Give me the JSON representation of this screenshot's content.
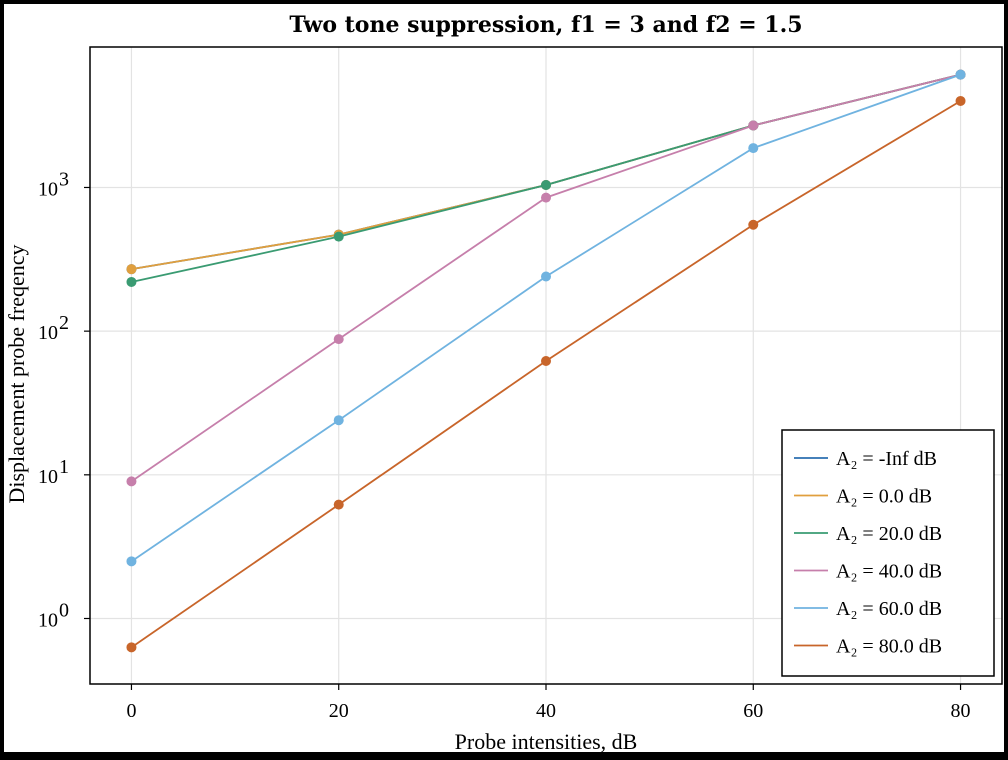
{
  "chart_data": {
    "type": "line",
    "title": "Two tone suppression, f1 = 3 and f2 = 1.5",
    "xlabel": "Probe intensities, dB",
    "ylabel": "Displacement probe freqency",
    "x": [
      0,
      20,
      40,
      60,
      80
    ],
    "xlim": [
      -4,
      84
    ],
    "xticks": [
      "0",
      "20",
      "40",
      "60",
      "80"
    ],
    "yscale": "log",
    "ylim": [
      0.35,
      9500
    ],
    "yticks": [
      {
        "value": 1,
        "base": "10",
        "exp": "0"
      },
      {
        "value": 10,
        "base": "10",
        "exp": "1"
      },
      {
        "value": 100,
        "base": "10",
        "exp": "2"
      },
      {
        "value": 1000,
        "base": "10",
        "exp": "3"
      }
    ],
    "grid": true,
    "legend_position": "bottom-right",
    "series": [
      {
        "name": "A₂ = -Inf dB",
        "color": "#2c6fb0",
        "values": [
          270,
          470,
          1040,
          2700,
          6100
        ]
      },
      {
        "name": "A₂ = 0.0 dB",
        "color": "#e09f3e",
        "values": [
          270,
          470,
          1040,
          2700,
          6100
        ]
      },
      {
        "name": "A₂ = 20.0 dB",
        "color": "#3a9b72",
        "values": [
          220,
          455,
          1040,
          2700,
          6100
        ]
      },
      {
        "name": "A₂ = 40.0 dB",
        "color": "#c67fab",
        "values": [
          9,
          88,
          850,
          2700,
          6100
        ]
      },
      {
        "name": "A₂ = 60.0 dB",
        "color": "#70b3e0",
        "values": [
          2.5,
          24,
          240,
          1880,
          6100
        ]
      },
      {
        "name": "A₂ = 80.0 dB",
        "color": "#c8652a",
        "values": [
          0.63,
          6.2,
          62,
          550,
          4000
        ]
      }
    ]
  }
}
